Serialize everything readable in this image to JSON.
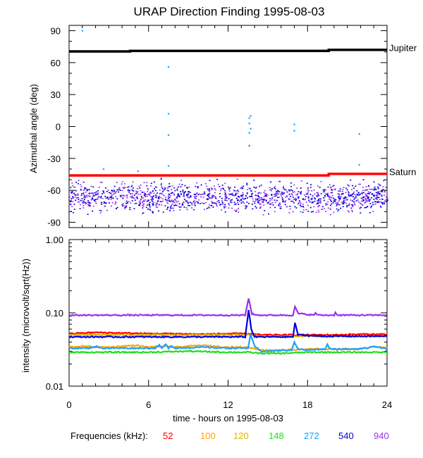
{
  "title": "URAP Direction Finding  1995-08-03",
  "colors": {
    "axis": "#000000",
    "jupiter": "#000000",
    "saturn": "#ff0000",
    "f52": "#ff0000",
    "f100": "#ffa500",
    "f120": "#e0b400",
    "f148": "#22dd22",
    "f272": "#1ea0ff",
    "f540": "#0000dd",
    "f940": "#9a30ee"
  },
  "legend": {
    "label": "Frequencies (kHz):",
    "items": [
      {
        "label": "52",
        "color": "#ff0000"
      },
      {
        "label": "100",
        "color": "#ffa500"
      },
      {
        "label": "120",
        "color": "#e0b400"
      },
      {
        "label": "148",
        "color": "#22dd22"
      },
      {
        "label": "272",
        "color": "#1ea0ff"
      },
      {
        "label": "540",
        "color": "#0000dd"
      },
      {
        "label": "940",
        "color": "#9a30ee"
      }
    ]
  },
  "chart_data": [
    {
      "type": "scatter",
      "name": "azimuth",
      "ylabel": "Azimuthal angle (deg)",
      "xlim": [
        0,
        24
      ],
      "ylim": [
        -95,
        95
      ],
      "yticks": [
        90,
        60,
        30,
        0,
        -30,
        -60,
        -90
      ],
      "ytick_labels": [
        "90",
        "60",
        "30",
        "0",
        "-30",
        "-60",
        "-90"
      ],
      "reference_lines": [
        {
          "name": "Jupiter",
          "label": "Jupiter",
          "x": [
            0,
            4.6,
            4.6,
            19.6,
            19.6,
            24
          ],
          "y": [
            70.5,
            70.5,
            71,
            71,
            72,
            72
          ]
        },
        {
          "name": "Saturn",
          "label": "Saturn",
          "x": [
            0,
            19.6,
            19.6,
            24
          ],
          "y": [
            -46,
            -46,
            -44.5,
            -44.5
          ]
        }
      ],
      "background_scatter": {
        "series": [
          "540",
          "940"
        ],
        "x_range": [
          0,
          24
        ],
        "y_center": -66,
        "y_spread": 13
      },
      "isolated_points": [
        {
          "series": "272",
          "x": 1.0,
          "y": 90
        },
        {
          "series": "272",
          "x": 7.5,
          "y": 56
        },
        {
          "series": "272",
          "x": 7.5,
          "y": 12
        },
        {
          "series": "272",
          "x": 7.5,
          "y": -8
        },
        {
          "series": "272",
          "x": 7.5,
          "y": -37
        },
        {
          "series": "272",
          "x": 13.6,
          "y": 8
        },
        {
          "series": "272",
          "x": 13.6,
          "y": 3
        },
        {
          "series": "272",
          "x": 13.7,
          "y": -2
        },
        {
          "series": "272",
          "x": 13.6,
          "y": -6
        },
        {
          "series": "272",
          "x": 13.7,
          "y": 10
        },
        {
          "series": "940",
          "x": 13.6,
          "y": -18
        },
        {
          "series": "272",
          "x": 17.0,
          "y": 2
        },
        {
          "series": "272",
          "x": 17.0,
          "y": -4
        },
        {
          "series": "272",
          "x": 21.9,
          "y": -7
        },
        {
          "series": "272",
          "x": 21.9,
          "y": -36
        },
        {
          "series": "272",
          "x": 2.6,
          "y": -40
        },
        {
          "series": "272",
          "x": 5.2,
          "y": -42
        }
      ]
    },
    {
      "type": "line",
      "name": "intensity",
      "ylabel": "intensity (microvolt/sqrt(Hz))",
      "xlabel": "time - hours on 1995-08-03",
      "xlim": [
        0,
        24
      ],
      "xticks": [
        0,
        6,
        12,
        18,
        24
      ],
      "xtick_labels": [
        "0",
        "6",
        "12",
        "18",
        "24"
      ],
      "yscale": "log",
      "ylim": [
        0.01,
        1.0
      ],
      "yticks": [
        1.0,
        0.1,
        0.01
      ],
      "ytick_labels": [
        "1.00",
        "0.10",
        "0.01"
      ],
      "series": [
        {
          "name": "940",
          "x": [
            0,
            13.3,
            13.55,
            13.65,
            13.8,
            14.2,
            16.9,
            17.05,
            17.3,
            18.5,
            18.6,
            18.8,
            20.0,
            20.1,
            20.3,
            24
          ],
          "y": [
            0.093,
            0.093,
            0.16,
            0.13,
            0.097,
            0.093,
            0.093,
            0.12,
            0.098,
            0.093,
            0.1,
            0.093,
            0.093,
            0.1,
            0.093,
            0.093
          ]
        },
        {
          "name": "52",
          "x": [
            0,
            2,
            4,
            6,
            8,
            10,
            12,
            13.5,
            14.5,
            16,
            18,
            20,
            22,
            24
          ],
          "y": [
            0.052,
            0.054,
            0.053,
            0.052,
            0.052,
            0.051,
            0.052,
            0.052,
            0.05,
            0.05,
            0.05,
            0.05,
            0.051,
            0.051
          ]
        },
        {
          "name": "120",
          "x": [
            0,
            6,
            12,
            13.5,
            14.5,
            18,
            24
          ],
          "y": [
            0.05,
            0.05,
            0.05,
            0.05,
            0.048,
            0.048,
            0.048
          ]
        },
        {
          "name": "540",
          "x": [
            0,
            13.3,
            13.55,
            13.75,
            14.0,
            16.9,
            17.05,
            17.3,
            19.0,
            24
          ],
          "y": [
            0.047,
            0.047,
            0.11,
            0.06,
            0.047,
            0.047,
            0.072,
            0.05,
            0.048,
            0.048
          ]
        },
        {
          "name": "100",
          "x": [
            0,
            1,
            2,
            3,
            4,
            5,
            6,
            7,
            8,
            9,
            10,
            11,
            12,
            13.5,
            14.5,
            16,
            18,
            20,
            22,
            23,
            24
          ],
          "y": [
            0.034,
            0.035,
            0.034,
            0.034,
            0.035,
            0.036,
            0.034,
            0.035,
            0.034,
            0.035,
            0.036,
            0.035,
            0.034,
            0.034,
            0.031,
            0.031,
            0.032,
            0.032,
            0.032,
            0.035,
            0.033
          ]
        },
        {
          "name": "272",
          "x": [
            0,
            1.5,
            2.0,
            2.5,
            6.5,
            6.8,
            7.0,
            7.3,
            7.5,
            7.7,
            8,
            10,
            12,
            13.5,
            13.7,
            14.0,
            14.5,
            15,
            16.8,
            17.0,
            17.3,
            18,
            19.3,
            19.5,
            19.7,
            21,
            22.5,
            23,
            24
          ],
          "y": [
            0.033,
            0.033,
            0.035,
            0.033,
            0.033,
            0.036,
            0.033,
            0.037,
            0.033,
            0.036,
            0.033,
            0.034,
            0.033,
            0.033,
            0.05,
            0.035,
            0.03,
            0.03,
            0.031,
            0.04,
            0.032,
            0.031,
            0.032,
            0.037,
            0.032,
            0.032,
            0.033,
            0.035,
            0.032
          ]
        },
        {
          "name": "148",
          "x": [
            0,
            3,
            6,
            9,
            12,
            13.5,
            14.5,
            16,
            18,
            20,
            22,
            24
          ],
          "y": [
            0.029,
            0.029,
            0.029,
            0.03,
            0.029,
            0.029,
            0.028,
            0.028,
            0.029,
            0.029,
            0.029,
            0.029
          ]
        }
      ]
    }
  ]
}
